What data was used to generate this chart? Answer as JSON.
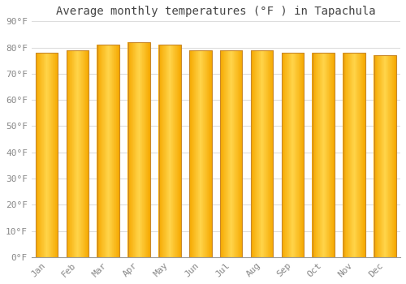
{
  "months": [
    "Jan",
    "Feb",
    "Mar",
    "Apr",
    "May",
    "Jun",
    "Jul",
    "Aug",
    "Sep",
    "Oct",
    "Nov",
    "Dec"
  ],
  "values": [
    78,
    79,
    81,
    82,
    81,
    79,
    79,
    79,
    78,
    78,
    78,
    77
  ],
  "bar_color_center": "#FFD44A",
  "bar_color_edge": "#F5A800",
  "bar_edge_color": "#C8882A",
  "title": "Average monthly temperatures (°F ) in Tapachula",
  "ylim": [
    0,
    90
  ],
  "ytick_step": 10,
  "background_color": "#FFFFFF",
  "plot_bg_color": "#FFFFFF",
  "grid_color": "#DDDDDD",
  "title_fontsize": 10,
  "tick_fontsize": 8,
  "font_family": "monospace"
}
